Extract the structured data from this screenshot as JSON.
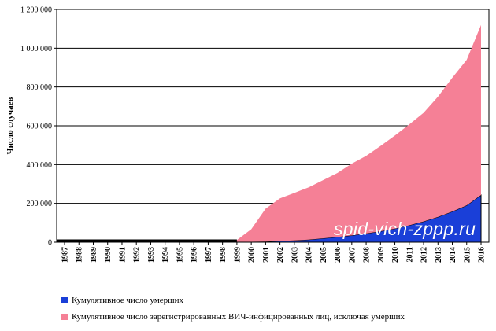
{
  "chart_data": {
    "type": "area",
    "stacked": true,
    "title": "",
    "xlabel": "",
    "ylabel": "Число случаев",
    "ylim": [
      0,
      1200000
    ],
    "yticks": [
      0,
      200000,
      400000,
      600000,
      800000,
      1000000,
      1200000
    ],
    "ytick_labels": [
      "0",
      "200 000",
      "400 000",
      "600 000",
      "800 000",
      "1 000 000",
      "1 200 000"
    ],
    "grid": true,
    "legend_position": "bottom",
    "x": [
      "1987",
      "1988",
      "1989",
      "1990",
      "1991",
      "1992",
      "1993",
      "1994",
      "1995",
      "1996",
      "1997",
      "1998",
      "1999",
      "2000",
      "2001",
      "2002",
      "2003",
      "2004",
      "2005",
      "2006",
      "2007",
      "2008",
      "2009",
      "2010",
      "2011",
      "2012",
      "2013",
      "2014",
      "2015",
      "2016"
    ],
    "series": [
      {
        "name": "Кумулятивное число умерших",
        "color": "#1a3fd8",
        "values": [
          0,
          0,
          0,
          0,
          0,
          0,
          0,
          0,
          0,
          0,
          0,
          0,
          1000,
          2000,
          3000,
          6000,
          9000,
          13000,
          20000,
          27000,
          35000,
          45000,
          56000,
          70000,
          87000,
          107000,
          130000,
          158000,
          190000,
          243000
        ]
      },
      {
        "name": "Кумулятивное число зарегистрированных ВИЧ-инфицированных лиц, исключая умерших",
        "color": "#f58096",
        "values": [
          0,
          0,
          0,
          0,
          0,
          0,
          0,
          0,
          0,
          0,
          0,
          0,
          10000,
          65000,
          170000,
          220000,
          245000,
          270000,
          300000,
          330000,
          370000,
          400000,
          440000,
          480000,
          520000,
          560000,
          620000,
          690000,
          750000,
          877000
        ]
      }
    ]
  },
  "watermark": "spid-vich-zppp.ru"
}
